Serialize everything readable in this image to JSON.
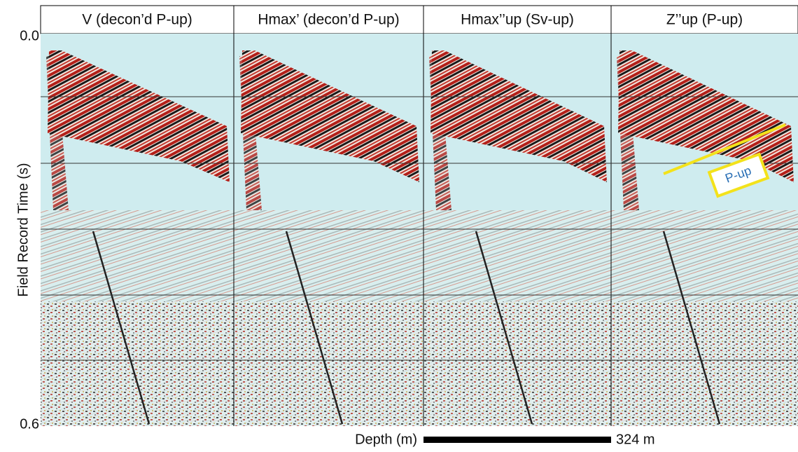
{
  "panels": [
    {
      "title": "V (decon’d P-up)"
    },
    {
      "title": "Hmax’ (decon’d P-up)"
    },
    {
      "title": "Hmax’’up (Sv-up)"
    },
    {
      "title": "Z’’up (P-up)"
    }
  ],
  "y_axis": {
    "label": "Field Record Time (s)",
    "ticks": [
      "0.0",
      "0.6"
    ]
  },
  "scale_bar": {
    "axis_label": "Depth (m)",
    "length_label": "324 m"
  },
  "annotation": {
    "label": "P-up"
  }
}
